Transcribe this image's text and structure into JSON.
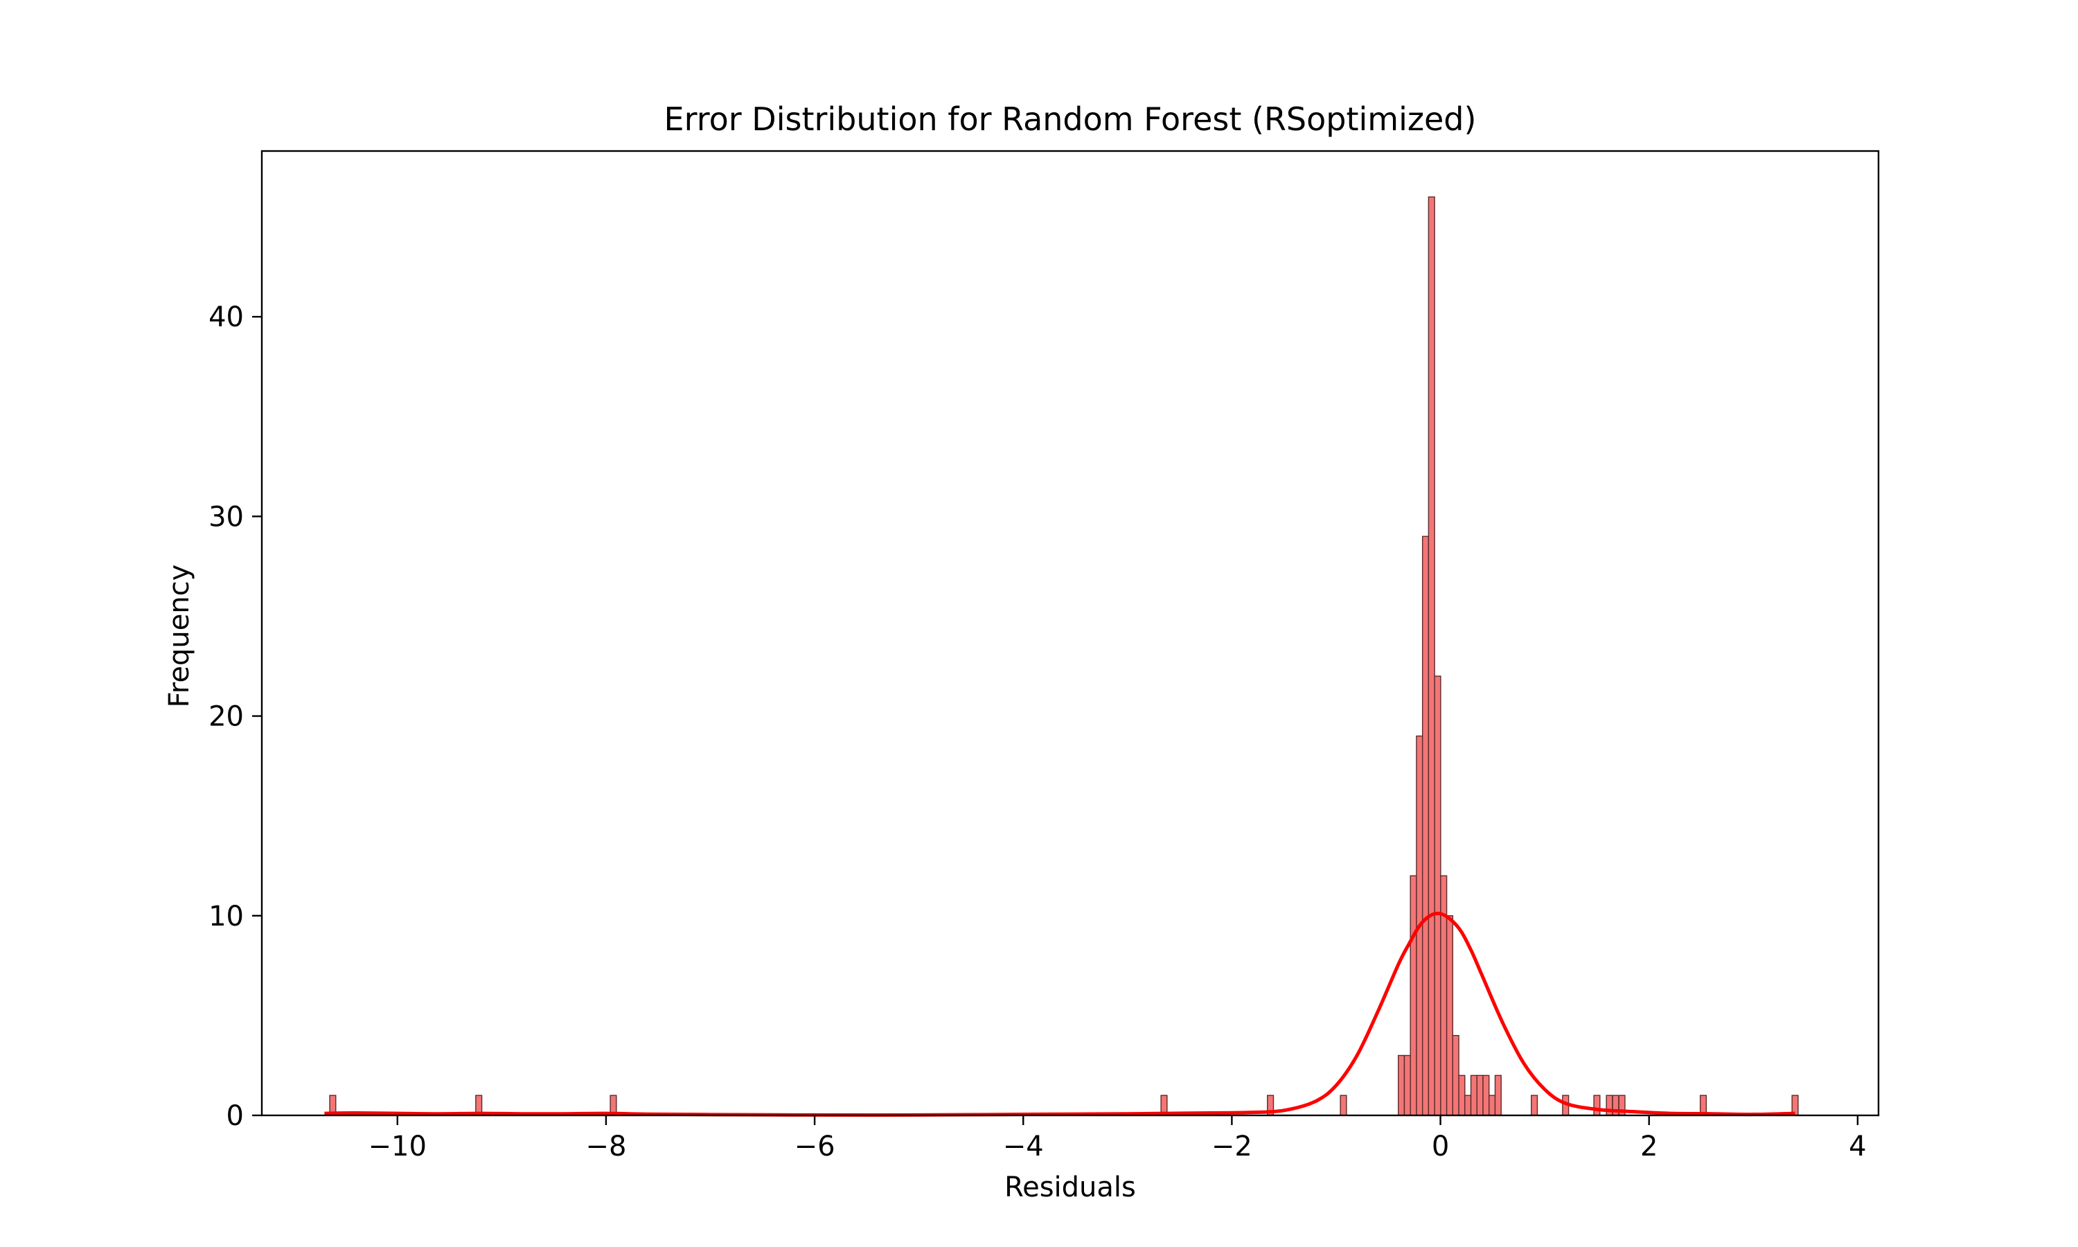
{
  "chart_data": {
    "type": "bar",
    "title": "Error Distribution for Random Forest (RSoptimized)",
    "xlabel": "Residuals",
    "ylabel": "Frequency",
    "xlim": [
      -11.3,
      4.2
    ],
    "ylim": [
      0,
      48.3
    ],
    "x_ticks": [
      {
        "value": -10,
        "label": "−10"
      },
      {
        "value": -8,
        "label": "−8"
      },
      {
        "value": -6,
        "label": "−6"
      },
      {
        "value": -4,
        "label": "−4"
      },
      {
        "value": -2,
        "label": "−2"
      },
      {
        "value": 0,
        "label": "0"
      },
      {
        "value": 2,
        "label": "2"
      },
      {
        "value": 4,
        "label": "4"
      }
    ],
    "y_ticks": [
      {
        "value": 0,
        "label": "0"
      },
      {
        "value": 10,
        "label": "10"
      },
      {
        "value": 20,
        "label": "20"
      },
      {
        "value": 30,
        "label": "30"
      },
      {
        "value": 40,
        "label": "40"
      }
    ],
    "grid": false,
    "bin_width": 0.058,
    "histogram": [
      {
        "x": -10.62,
        "count": 1
      },
      {
        "x": -9.22,
        "count": 1
      },
      {
        "x": -7.93,
        "count": 1
      },
      {
        "x": -2.65,
        "count": 1
      },
      {
        "x": -1.63,
        "count": 1
      },
      {
        "x": -0.93,
        "count": 1
      },
      {
        "x": -0.375,
        "count": 3
      },
      {
        "x": -0.317,
        "count": 3
      },
      {
        "x": -0.259,
        "count": 12
      },
      {
        "x": -0.201,
        "count": 19
      },
      {
        "x": -0.143,
        "count": 29
      },
      {
        "x": -0.085,
        "count": 46
      },
      {
        "x": -0.027,
        "count": 22
      },
      {
        "x": 0.031,
        "count": 12
      },
      {
        "x": 0.089,
        "count": 10
      },
      {
        "x": 0.147,
        "count": 4
      },
      {
        "x": 0.205,
        "count": 2
      },
      {
        "x": 0.263,
        "count": 1
      },
      {
        "x": 0.321,
        "count": 2
      },
      {
        "x": 0.379,
        "count": 2
      },
      {
        "x": 0.437,
        "count": 2
      },
      {
        "x": 0.495,
        "count": 1
      },
      {
        "x": 0.553,
        "count": 2
      },
      {
        "x": 0.9,
        "count": 1
      },
      {
        "x": 1.2,
        "count": 1
      },
      {
        "x": 1.5,
        "count": 1
      },
      {
        "x": 1.62,
        "count": 1
      },
      {
        "x": 1.68,
        "count": 1
      },
      {
        "x": 1.74,
        "count": 1
      },
      {
        "x": 2.52,
        "count": 1
      },
      {
        "x": 3.4,
        "count": 1
      }
    ],
    "kde": {
      "x": [
        -10.7,
        -10.4,
        -10.0,
        -9.6,
        -9.2,
        -8.8,
        -8.4,
        -8.0,
        -7.6,
        -7.0,
        -6.0,
        -5.0,
        -4.0,
        -3.0,
        -2.6,
        -2.2,
        -1.8,
        -1.5,
        -1.2,
        -1.0,
        -0.8,
        -0.6,
        -0.4,
        -0.3,
        -0.2,
        -0.1,
        0.0,
        0.1,
        0.2,
        0.3,
        0.4,
        0.6,
        0.8,
        1.0,
        1.2,
        1.5,
        1.8,
        2.2,
        2.6,
        3.0,
        3.4
      ],
      "y": [
        0.1,
        0.12,
        0.1,
        0.08,
        0.1,
        0.08,
        0.08,
        0.1,
        0.06,
        0.04,
        0.02,
        0.02,
        0.05,
        0.08,
        0.1,
        0.12,
        0.15,
        0.25,
        0.7,
        1.5,
        3.0,
        5.2,
        7.6,
        8.6,
        9.5,
        10.0,
        10.1,
        9.8,
        9.2,
        8.2,
        7.0,
        4.6,
        2.6,
        1.3,
        0.6,
        0.3,
        0.2,
        0.1,
        0.08,
        0.05,
        0.1
      ]
    },
    "colors": {
      "bar_fill": "#f37676",
      "bar_edge": "#5a2a2a",
      "kde_line": "#ff0000",
      "axes": "#000000"
    }
  }
}
